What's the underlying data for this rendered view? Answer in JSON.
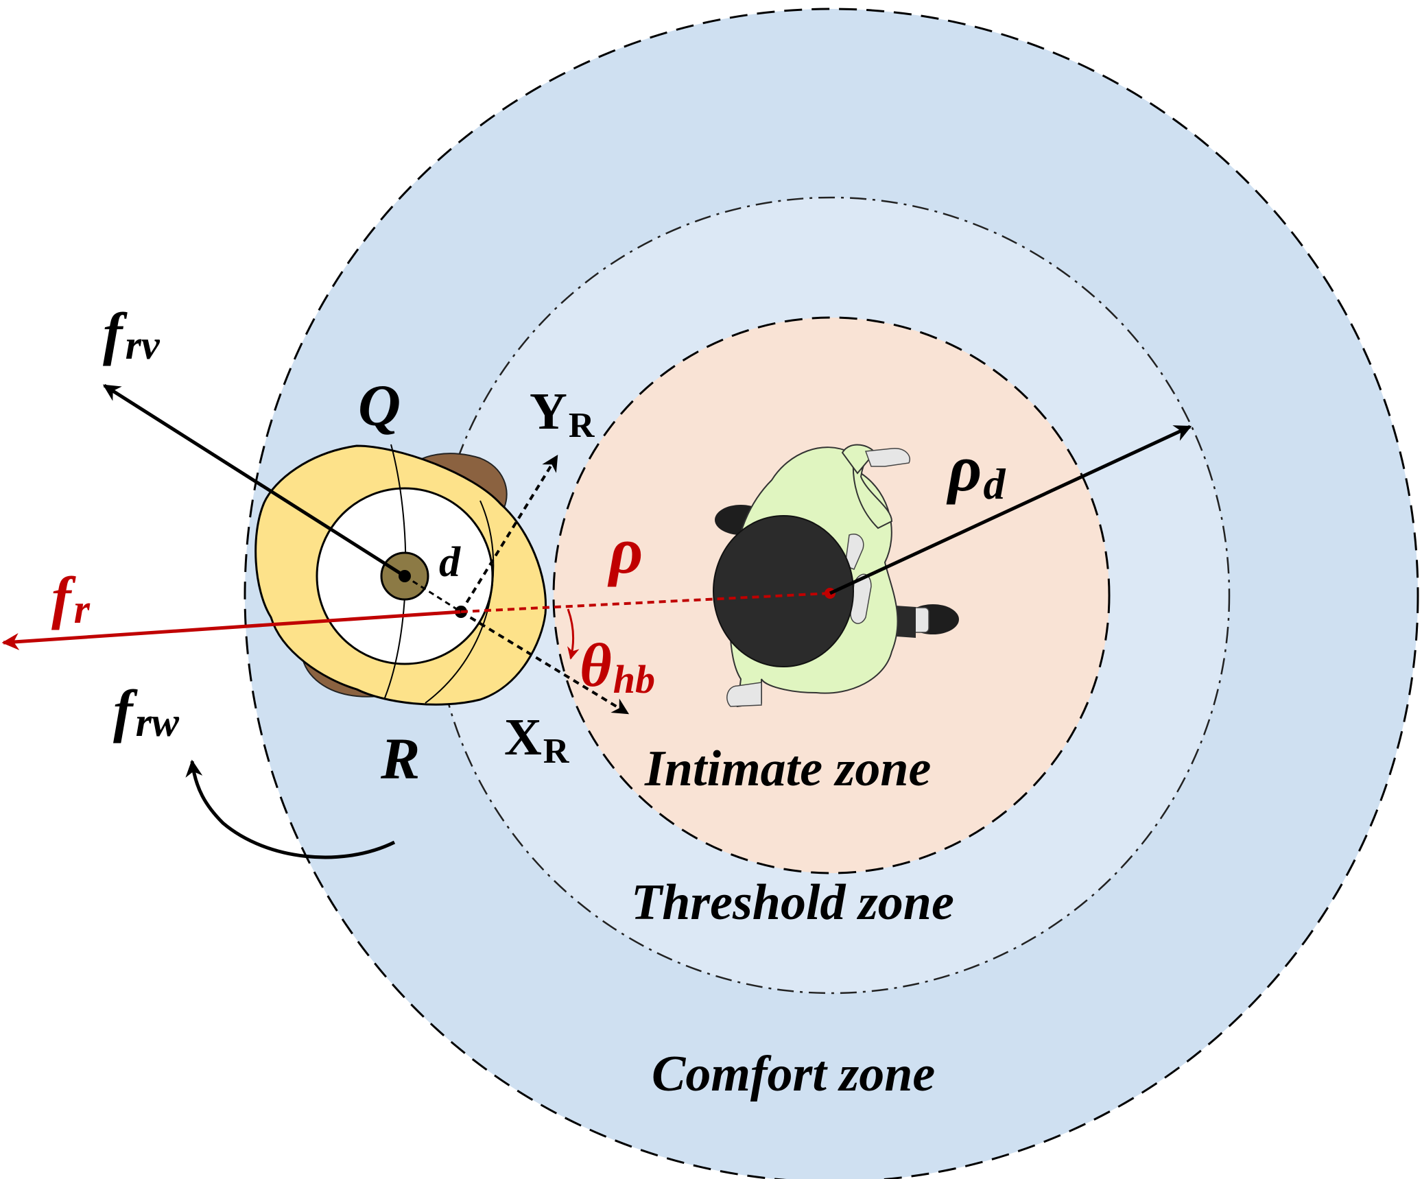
{
  "zones": {
    "comfort": "Comfort zone",
    "threshold": "Threshold zone",
    "intimate": "Intimate zone"
  },
  "labels": {
    "f_rv_base": "f",
    "f_rv_sub": "rv",
    "f_r_base": "f",
    "f_r_sub": "r",
    "f_rw_base": "f",
    "f_rw_sub": "rw",
    "Q": "Q",
    "R": "R",
    "d": "d",
    "Y_base": "Y",
    "Y_sub": "R",
    "X_base": "X",
    "X_sub": "R",
    "rho": "ρ",
    "rho_d_base": "ρ",
    "rho_d_sub": "d",
    "theta_base": "θ",
    "theta_sub": "hb"
  },
  "colors": {
    "comfort_fill": "#cfe0f1",
    "threshold_fill": "#dce8f5",
    "intimate_fill": "#f9e3d5",
    "accent_red": "#c00000",
    "robot_body": "#fde28a",
    "robot_wheel": "#8b6240",
    "human_shirt": "#e0f5c0",
    "human_hair": "#2b2b2b"
  }
}
